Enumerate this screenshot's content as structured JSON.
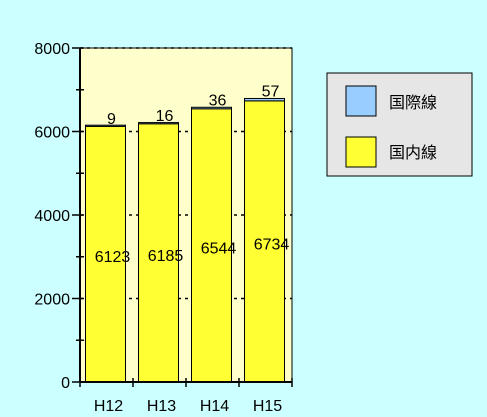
{
  "chart_data": {
    "type": "bar",
    "stacked": true,
    "categories": [
      "H12",
      "H13",
      "H14",
      "H15"
    ],
    "series": [
      {
        "name": "国内線",
        "values": [
          6123,
          6185,
          6544,
          6734
        ],
        "color": "#ffff33"
      },
      {
        "name": "国際線",
        "values": [
          9,
          16,
          36,
          57
        ],
        "color": "#99ccff"
      }
    ],
    "ylim": [
      0,
      8000
    ],
    "yticks": [
      0,
      2000,
      4000,
      6000,
      8000
    ],
    "grid": true,
    "legend_position": "right",
    "colors": {
      "background": "#ccffff",
      "plot_area": "#ffffcc",
      "legend_background": "#e6e6e6"
    }
  }
}
